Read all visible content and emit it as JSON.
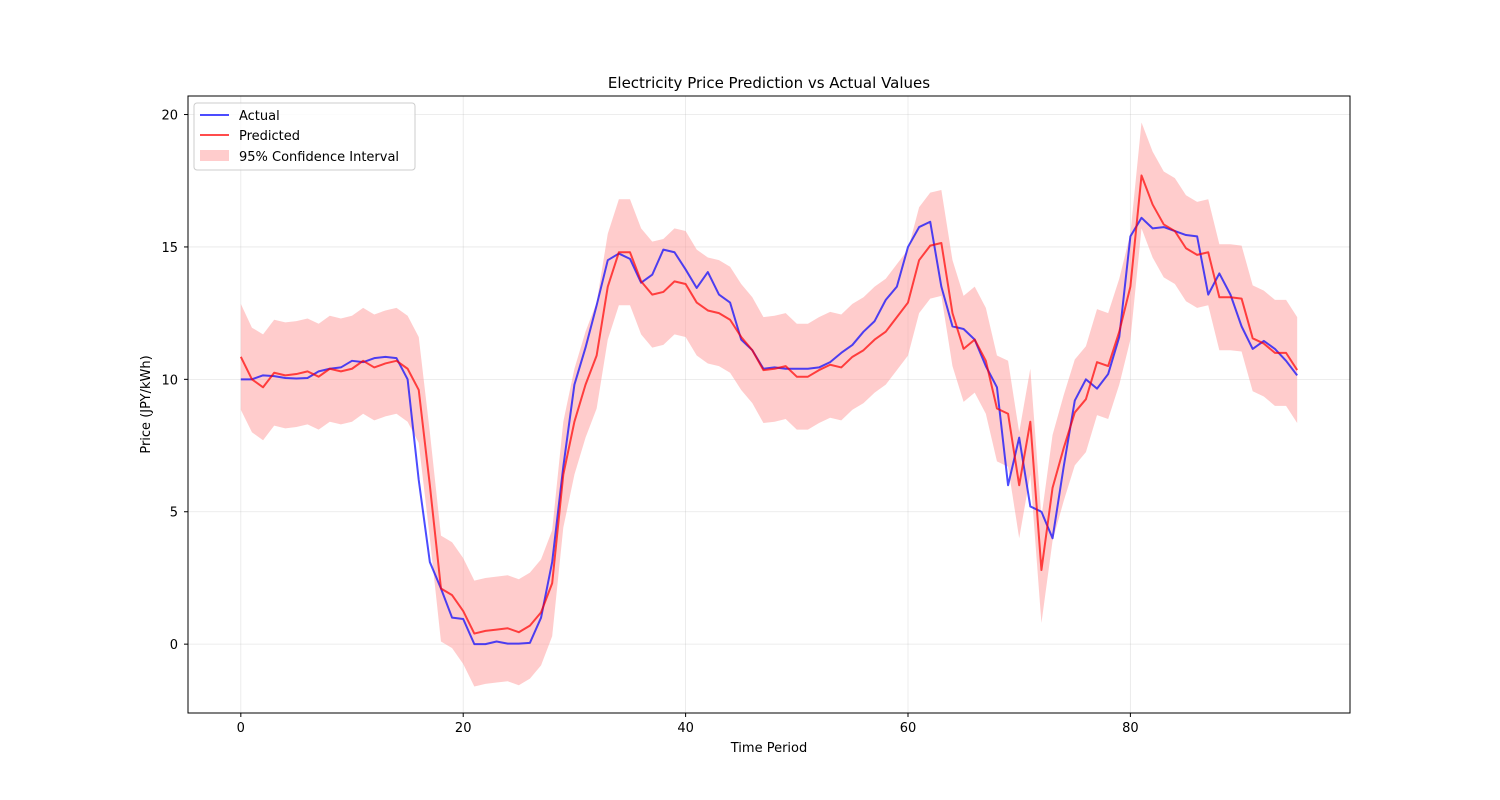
{
  "chart_data": {
    "type": "line",
    "title": "Electricity Price Prediction vs Actual Values",
    "xlabel": "Time Period",
    "ylabel": "Price (JPY/kWh)",
    "xlim": [
      -4.75,
      99.75
    ],
    "ylim": [
      -2.6,
      20.7
    ],
    "xticks": [
      0,
      20,
      40,
      60,
      80
    ],
    "yticks": [
      0,
      5,
      10,
      15,
      20
    ],
    "grid": true,
    "legend_position": "top-left",
    "x": [
      0,
      1,
      2,
      3,
      4,
      5,
      6,
      7,
      8,
      9,
      10,
      11,
      12,
      13,
      14,
      15,
      16,
      17,
      18,
      19,
      20,
      21,
      22,
      23,
      24,
      25,
      26,
      27,
      28,
      29,
      30,
      31,
      32,
      33,
      34,
      35,
      36,
      37,
      38,
      39,
      40,
      41,
      42,
      43,
      44,
      45,
      46,
      47,
      48,
      49,
      50,
      51,
      52,
      53,
      54,
      55,
      56,
      57,
      58,
      59,
      60,
      61,
      62,
      63,
      64,
      65,
      66,
      67,
      68,
      69,
      70,
      71,
      72,
      73,
      74,
      75,
      76,
      77,
      78,
      79,
      80,
      81,
      82,
      83,
      84,
      85,
      86,
      87,
      88,
      89,
      90,
      91,
      92,
      93,
      94,
      95
    ],
    "series": [
      {
        "name": "Actual",
        "color": "#0000ff",
        "values": [
          10.0,
          10.0,
          10.15,
          10.12,
          10.05,
          10.03,
          10.05,
          10.3,
          10.4,
          10.45,
          10.7,
          10.65,
          10.8,
          10.85,
          10.8,
          10.0,
          6.2,
          3.1,
          2.1,
          1.0,
          0.95,
          0.0,
          0.0,
          0.1,
          0.02,
          0.02,
          0.05,
          1.0,
          3.1,
          6.7,
          9.8,
          11.2,
          12.8,
          14.5,
          14.75,
          14.55,
          13.65,
          13.95,
          14.9,
          14.8,
          14.15,
          13.45,
          14.05,
          13.2,
          12.9,
          11.5,
          11.1,
          10.4,
          10.45,
          10.4,
          10.4,
          10.4,
          10.45,
          10.65,
          11.0,
          11.3,
          11.8,
          12.2,
          13.0,
          13.5,
          15.0,
          15.75,
          15.95,
          13.5,
          12.0,
          11.9,
          11.5,
          10.5,
          9.7,
          6.0,
          7.8,
          5.2,
          5.0,
          4.0,
          6.7,
          9.2,
          10.0,
          9.65,
          10.2,
          11.6,
          15.4,
          16.1,
          15.7,
          15.75,
          15.6,
          15.45,
          15.4,
          13.2,
          14.0,
          13.2,
          12.0,
          11.15,
          11.45,
          11.15,
          10.7,
          10.15
        ]
      },
      {
        "name": "Predicted",
        "color": "#ff0000",
        "values": [
          10.85,
          10.0,
          9.7,
          10.25,
          10.15,
          10.2,
          10.3,
          10.1,
          10.4,
          10.3,
          10.4,
          10.7,
          10.45,
          10.6,
          10.7,
          10.4,
          9.6,
          6.0,
          2.1,
          1.85,
          1.25,
          0.4,
          0.5,
          0.55,
          0.6,
          0.45,
          0.7,
          1.2,
          2.3,
          6.4,
          8.4,
          9.8,
          10.9,
          13.5,
          14.8,
          14.8,
          13.7,
          13.2,
          13.3,
          13.7,
          13.6,
          12.9,
          12.6,
          12.5,
          12.25,
          11.6,
          11.1,
          10.35,
          10.4,
          10.5,
          10.1,
          10.1,
          10.35,
          10.55,
          10.45,
          10.85,
          11.1,
          11.5,
          11.8,
          12.35,
          12.9,
          14.5,
          15.05,
          15.15,
          12.5,
          11.15,
          11.5,
          10.7,
          8.9,
          8.7,
          6.0,
          8.4,
          2.8,
          5.9,
          7.4,
          8.75,
          9.25,
          10.65,
          10.5,
          11.8,
          13.5,
          17.7,
          16.6,
          15.85,
          15.6,
          14.95,
          14.7,
          14.8,
          13.1,
          13.1,
          13.05,
          11.55,
          11.35,
          11.0,
          11.0,
          10.35
        ]
      }
    ],
    "confidence_interval": {
      "name": "95% Confidence Interval",
      "color": "#ff9999",
      "upper": [
        12.85,
        11.95,
        11.7,
        12.25,
        12.15,
        12.2,
        12.3,
        12.1,
        12.4,
        12.3,
        12.4,
        12.7,
        12.45,
        12.6,
        12.7,
        12.4,
        11.6,
        8.0,
        4.1,
        3.85,
        3.25,
        2.4,
        2.5,
        2.55,
        2.6,
        2.45,
        2.7,
        3.2,
        4.3,
        8.4,
        10.4,
        11.8,
        12.9,
        15.5,
        16.8,
        16.8,
        15.7,
        15.2,
        15.3,
        15.7,
        15.6,
        14.9,
        14.6,
        14.5,
        14.25,
        13.6,
        13.1,
        12.35,
        12.4,
        12.5,
        12.1,
        12.1,
        12.35,
        12.55,
        12.45,
        12.85,
        13.1,
        13.5,
        13.8,
        14.35,
        14.9,
        16.5,
        17.05,
        17.15,
        14.5,
        13.15,
        13.5,
        12.7,
        10.9,
        10.7,
        8.0,
        10.4,
        4.8,
        7.9,
        9.4,
        10.75,
        11.25,
        12.65,
        12.5,
        13.8,
        15.5,
        19.7,
        18.6,
        17.85,
        17.6,
        16.95,
        16.7,
        16.8,
        15.1,
        15.1,
        15.05,
        13.55,
        13.35,
        13.0,
        13.0,
        12.35
      ],
      "lower": [
        8.85,
        8.0,
        7.7,
        8.25,
        8.15,
        8.2,
        8.3,
        8.1,
        8.4,
        8.3,
        8.4,
        8.7,
        8.45,
        8.6,
        8.7,
        8.4,
        7.6,
        4.0,
        0.1,
        -0.15,
        -0.75,
        -1.6,
        -1.5,
        -1.45,
        -1.4,
        -1.55,
        -1.3,
        -0.8,
        0.3,
        4.4,
        6.4,
        7.8,
        8.9,
        11.5,
        12.8,
        12.8,
        11.7,
        11.2,
        11.3,
        11.7,
        11.6,
        10.9,
        10.6,
        10.5,
        10.25,
        9.6,
        9.1,
        8.35,
        8.4,
        8.5,
        8.1,
        8.1,
        8.35,
        8.55,
        8.45,
        8.85,
        9.1,
        9.5,
        9.8,
        10.35,
        10.9,
        12.5,
        13.05,
        13.15,
        10.5,
        9.15,
        9.5,
        8.7,
        6.9,
        6.7,
        4.0,
        6.4,
        0.8,
        3.9,
        5.4,
        6.75,
        7.25,
        8.65,
        8.5,
        9.8,
        11.5,
        15.7,
        14.6,
        13.85,
        13.6,
        12.95,
        12.7,
        12.8,
        11.1,
        11.1,
        11.05,
        9.55,
        9.35,
        9.0,
        9.0,
        8.35
      ]
    }
  }
}
